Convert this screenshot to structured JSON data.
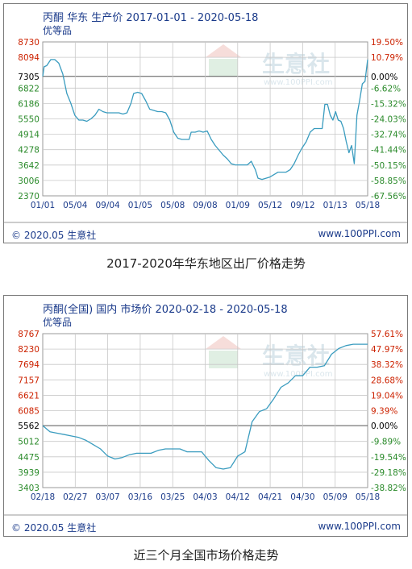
{
  "captions": [
    "2017-2020年华东地区出厂价格走势",
    "近三个月全国市场价格走势"
  ],
  "footer": {
    "left": "© 2020.05 生意社",
    "right": "www.100PPI.com"
  },
  "watermark": {
    "brand": "生意社",
    "url": "www.100PPI.com"
  },
  "colors": {
    "line": "#3a9cbf",
    "left_axis": "#cc2200",
    "right_axis": "#cc2200",
    "base_label": "#000000",
    "green_label": "#2a8a2a",
    "grid": "#c8c8c8",
    "text_blue": "#1a3a8a"
  },
  "chart_data": [
    {
      "type": "line",
      "title": "丙酮 华东 生产价 2017-01-01 - 2020-05-18",
      "subtitle": "优等品",
      "x_ticks": [
        "01/01",
        "05/04",
        "09/04",
        "01/05",
        "05/08",
        "09/08",
        "01/09",
        "05/12",
        "09/12",
        "01/13",
        "05/18"
      ],
      "left_ticks": [
        "8730",
        "8094",
        "7305",
        "6822",
        "6186",
        "5550",
        "4914",
        "4278",
        "3642",
        "3006",
        "2370"
      ],
      "right_ticks": [
        "19.50%",
        "10.79%",
        "0.00%",
        "-6.62%",
        "-15.32%",
        "-24.03%",
        "-32.74%",
        "-41.44%",
        "-50.15%",
        "-58.85%",
        "-67.56%"
      ],
      "base_value": 7305,
      "ylim": [
        2370,
        8730
      ],
      "series": [
        {
          "values": [
            [
              0,
              7305
            ],
            [
              0.1,
              7700
            ],
            [
              0.3,
              7750
            ],
            [
              0.6,
              8000
            ],
            [
              0.9,
              8000
            ],
            [
              1.2,
              7850
            ],
            [
              1.5,
              7400
            ],
            [
              1.8,
              6600
            ],
            [
              2.1,
              6200
            ],
            [
              2.4,
              5700
            ],
            [
              2.7,
              5500
            ],
            [
              3.0,
              5500
            ],
            [
              3.3,
              5450
            ],
            [
              3.6,
              5550
            ],
            [
              3.9,
              5700
            ],
            [
              4.2,
              5950
            ],
            [
              4.5,
              5850
            ],
            [
              4.8,
              5800
            ],
            [
              5.1,
              5800
            ],
            [
              5.4,
              5800
            ],
            [
              5.7,
              5800
            ],
            [
              6.0,
              5750
            ],
            [
              6.3,
              5800
            ],
            [
              6.6,
              6200
            ],
            [
              6.8,
              6600
            ],
            [
              7.1,
              6650
            ],
            [
              7.4,
              6600
            ],
            [
              7.7,
              6300
            ],
            [
              8.0,
              5950
            ],
            [
              8.3,
              5900
            ],
            [
              8.6,
              5850
            ],
            [
              8.9,
              5850
            ],
            [
              9.2,
              5800
            ],
            [
              9.5,
              5500
            ],
            [
              9.8,
              5000
            ],
            [
              10.1,
              4750
            ],
            [
              10.4,
              4700
            ],
            [
              10.7,
              4700
            ],
            [
              10.95,
              4700
            ],
            [
              11.1,
              5000
            ],
            [
              11.4,
              5000
            ],
            [
              11.7,
              5050
            ],
            [
              12.0,
              5000
            ],
            [
              12.3,
              5050
            ],
            [
              12.6,
              4700
            ],
            [
              12.9,
              4450
            ],
            [
              13.2,
              4250
            ],
            [
              13.5,
              4050
            ],
            [
              13.8,
              3900
            ],
            [
              14.1,
              3700
            ],
            [
              14.4,
              3650
            ],
            [
              14.7,
              3650
            ],
            [
              15.0,
              3650
            ],
            [
              15.3,
              3650
            ],
            [
              15.6,
              3800
            ],
            [
              15.9,
              3450
            ],
            [
              16.1,
              3100
            ],
            [
              16.4,
              3050
            ],
            [
              16.7,
              3100
            ],
            [
              17.0,
              3150
            ],
            [
              17.3,
              3250
            ],
            [
              17.6,
              3350
            ],
            [
              17.9,
              3350
            ],
            [
              18.2,
              3350
            ],
            [
              18.5,
              3450
            ],
            [
              18.8,
              3700
            ],
            [
              19.1,
              4050
            ],
            [
              19.4,
              4350
            ],
            [
              19.7,
              4600
            ],
            [
              20.0,
              5000
            ],
            [
              20.3,
              5150
            ],
            [
              20.6,
              5150
            ],
            [
              20.9,
              5150
            ],
            [
              21.1,
              6150
            ],
            [
              21.3,
              6150
            ],
            [
              21.5,
              5700
            ],
            [
              21.7,
              5500
            ],
            [
              21.9,
              5850
            ],
            [
              22.1,
              5500
            ],
            [
              22.3,
              5450
            ],
            [
              22.5,
              5150
            ],
            [
              22.7,
              4600
            ],
            [
              22.9,
              4150
            ],
            [
              23.1,
              4450
            ],
            [
              23.3,
              3700
            ],
            [
              23.5,
              5700
            ],
            [
              23.7,
              6300
            ],
            [
              23.9,
              7000
            ],
            [
              24.1,
              7100
            ],
            [
              24.3,
              8000
            ]
          ]
        }
      ],
      "x_max": 24.3
    },
    {
      "type": "line",
      "title": "丙酮(全国) 国内 市场价 2020-02-18 - 2020-05-18",
      "subtitle": "优等品",
      "x_ticks": [
        "02/18",
        "02/27",
        "03/07",
        "03/16",
        "03/25",
        "04/03",
        "04/12",
        "04/21",
        "04/30",
        "05/09",
        "05/18"
      ],
      "left_ticks": [
        "8767",
        "8230",
        "7694",
        "7157",
        "6621",
        "6085",
        "5562",
        "5012",
        "4475",
        "3939",
        "3403"
      ],
      "right_ticks": [
        "57.61%",
        "47.97%",
        "38.32%",
        "28.68%",
        "19.04%",
        "9.39%",
        "0.00%",
        "-9.89%",
        "-19.54%",
        "-29.18%",
        "-38.82%"
      ],
      "base_value": 5562,
      "ylim": [
        3403,
        8767
      ],
      "series": [
        {
          "values": [
            [
              0,
              5562
            ],
            [
              1,
              5350
            ],
            [
              2,
              5300
            ],
            [
              3,
              5250
            ],
            [
              4,
              5200
            ],
            [
              5,
              5150
            ],
            [
              6,
              5050
            ],
            [
              7,
              4900
            ],
            [
              8,
              4750
            ],
            [
              9,
              4500
            ],
            [
              10,
              4400
            ],
            [
              11,
              4450
            ],
            [
              12,
              4550
            ],
            [
              13,
              4600
            ],
            [
              14,
              4600
            ],
            [
              15,
              4600
            ],
            [
              16,
              4700
            ],
            [
              17,
              4750
            ],
            [
              18,
              4750
            ],
            [
              19,
              4750
            ],
            [
              20,
              4650
            ],
            [
              21,
              4650
            ],
            [
              22,
              4650
            ],
            [
              23,
              4350
            ],
            [
              24,
              4100
            ],
            [
              25,
              4050
            ],
            [
              26,
              4100
            ],
            [
              27,
              4500
            ],
            [
              28,
              4650
            ],
            [
              29,
              5700
            ],
            [
              30,
              6050
            ],
            [
              31,
              6150
            ],
            [
              32,
              6500
            ],
            [
              33,
              6900
            ],
            [
              34,
              7050
            ],
            [
              35,
              7300
            ],
            [
              36,
              7300
            ],
            [
              37,
              7600
            ],
            [
              38,
              7600
            ],
            [
              39,
              7650
            ],
            [
              40,
              8050
            ],
            [
              41,
              8250
            ],
            [
              42,
              8350
            ],
            [
              43,
              8400
            ],
            [
              44,
              8400
            ],
            [
              45,
              8400
            ]
          ]
        }
      ],
      "x_max": 45
    }
  ]
}
